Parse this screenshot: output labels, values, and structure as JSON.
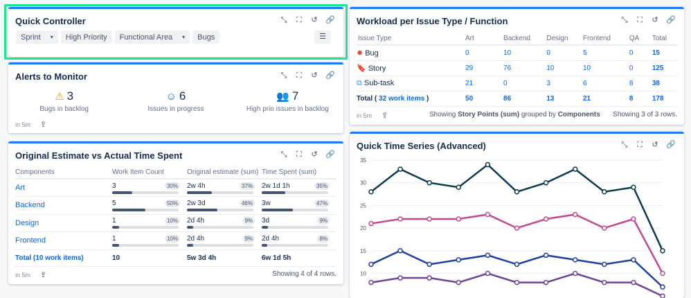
{
  "actions": {
    "icons": [
      "collapse-icon",
      "fullscreen-icon",
      "refresh-icon",
      "link-icon"
    ]
  },
  "refresh_label": "in 5m",
  "quick_controller": {
    "title": "Quick Controller",
    "chips": [
      {
        "label": "Sprint",
        "dropdown": true
      },
      {
        "label": "High Priority",
        "dropdown": false
      },
      {
        "label": "Functional Area",
        "dropdown": true
      },
      {
        "label": "Bugs",
        "dropdown": false
      }
    ]
  },
  "alerts": {
    "title": "Alerts to Monitor",
    "items": [
      {
        "icon": "warning-icon",
        "value": "3",
        "label": "Bugs in backlog",
        "color": "#f18d13"
      },
      {
        "icon": "smile-icon",
        "value": "6",
        "label": "Issues in progress",
        "color": "#0c66e4"
      },
      {
        "icon": "people-icon",
        "value": "7",
        "label": "High prio issues in backlog",
        "color": "#1d4fd8"
      }
    ]
  },
  "estimate": {
    "title": "Original Estimate vs Actual Time Spent",
    "headers": [
      "Components",
      "Work Item Count",
      "Original estimate (sum)",
      "Time Spent (sum)"
    ],
    "rows": [
      {
        "name": "Art",
        "c": [
          "3",
          "30%",
          30
        ],
        "o": [
          "2w 4h",
          "37%",
          37
        ],
        "t": [
          "2w 1d 1h",
          "35%",
          35
        ]
      },
      {
        "name": "Backend",
        "c": [
          "5",
          "50%",
          50
        ],
        "o": [
          "2w 3d",
          "46%",
          46
        ],
        "t": [
          "3w",
          "47%",
          47
        ]
      },
      {
        "name": "Design",
        "c": [
          "1",
          "10%",
          10
        ],
        "o": [
          "2d 4h",
          "9%",
          9
        ],
        "t": [
          "3d",
          "9%",
          9
        ]
      },
      {
        "name": "Frontend",
        "c": [
          "1",
          "10%",
          10
        ],
        "o": [
          "2d 4h",
          "9%",
          9
        ],
        "t": [
          "2d 4h",
          "8%",
          8
        ]
      }
    ],
    "total": {
      "label": "Total (10 work items)",
      "count": "10",
      "orig": "5w 3d 4h",
      "spent": "6w 1d 5h"
    },
    "showing": "Showing 4 of 4 rows."
  },
  "workload": {
    "title": "Workload per Issue Type / Function",
    "headers": [
      "Issue Type",
      "Art",
      "Backend",
      "Design",
      "Frontend",
      "QA",
      "Total"
    ],
    "rows": [
      {
        "type": "Bug",
        "icon": "bug-icon",
        "color": "#e2483d",
        "values": [
          "0",
          "10",
          "0",
          "5",
          "0",
          "15"
        ]
      },
      {
        "type": "Story",
        "icon": "story-icon",
        "color": "#6a9a23",
        "values": [
          "29",
          "76",
          "10",
          "10",
          "0",
          "125"
        ]
      },
      {
        "type": "Sub-task",
        "icon": "subtask-icon",
        "color": "#388bff",
        "values": [
          "21",
          "0",
          "3",
          "6",
          "8",
          "38"
        ]
      }
    ],
    "total": {
      "prefix": "Total (",
      "link": "32 work items",
      "suffix": ")",
      "values": [
        "50",
        "86",
        "13",
        "21",
        "8",
        "178"
      ]
    },
    "summary": {
      "a": "Showing ",
      "b": "Story Points (sum)",
      "c": " grouped by ",
      "d": "Components"
    },
    "showing": "Showing 3 of 3 rows."
  },
  "timeseries": {
    "title": "Quick Time Series (Advanced)"
  },
  "chart_data": {
    "type": "line",
    "yticks": [
      "10",
      "15",
      "20",
      "25",
      "30",
      "35"
    ],
    "ylim": [
      5,
      35
    ],
    "grid": true,
    "x": [
      1,
      2,
      3,
      4,
      5,
      6,
      7,
      8,
      9,
      10,
      11
    ],
    "series": [
      {
        "color": "#0b3a4f",
        "values": [
          28,
          33,
          30,
          29,
          34,
          28,
          30,
          33,
          28,
          29,
          15
        ]
      },
      {
        "color": "#c4488f",
        "values": [
          21,
          22,
          22,
          22,
          23,
          20,
          22,
          23,
          20,
          22,
          10
        ]
      },
      {
        "color": "#1f3ea3",
        "values": [
          12,
          15,
          12,
          13,
          14,
          12,
          14,
          13,
          12,
          13,
          7
        ]
      },
      {
        "color": "#6f4297",
        "values": [
          8,
          9,
          9,
          8,
          10,
          8,
          8,
          10,
          8,
          8,
          5
        ]
      }
    ]
  }
}
